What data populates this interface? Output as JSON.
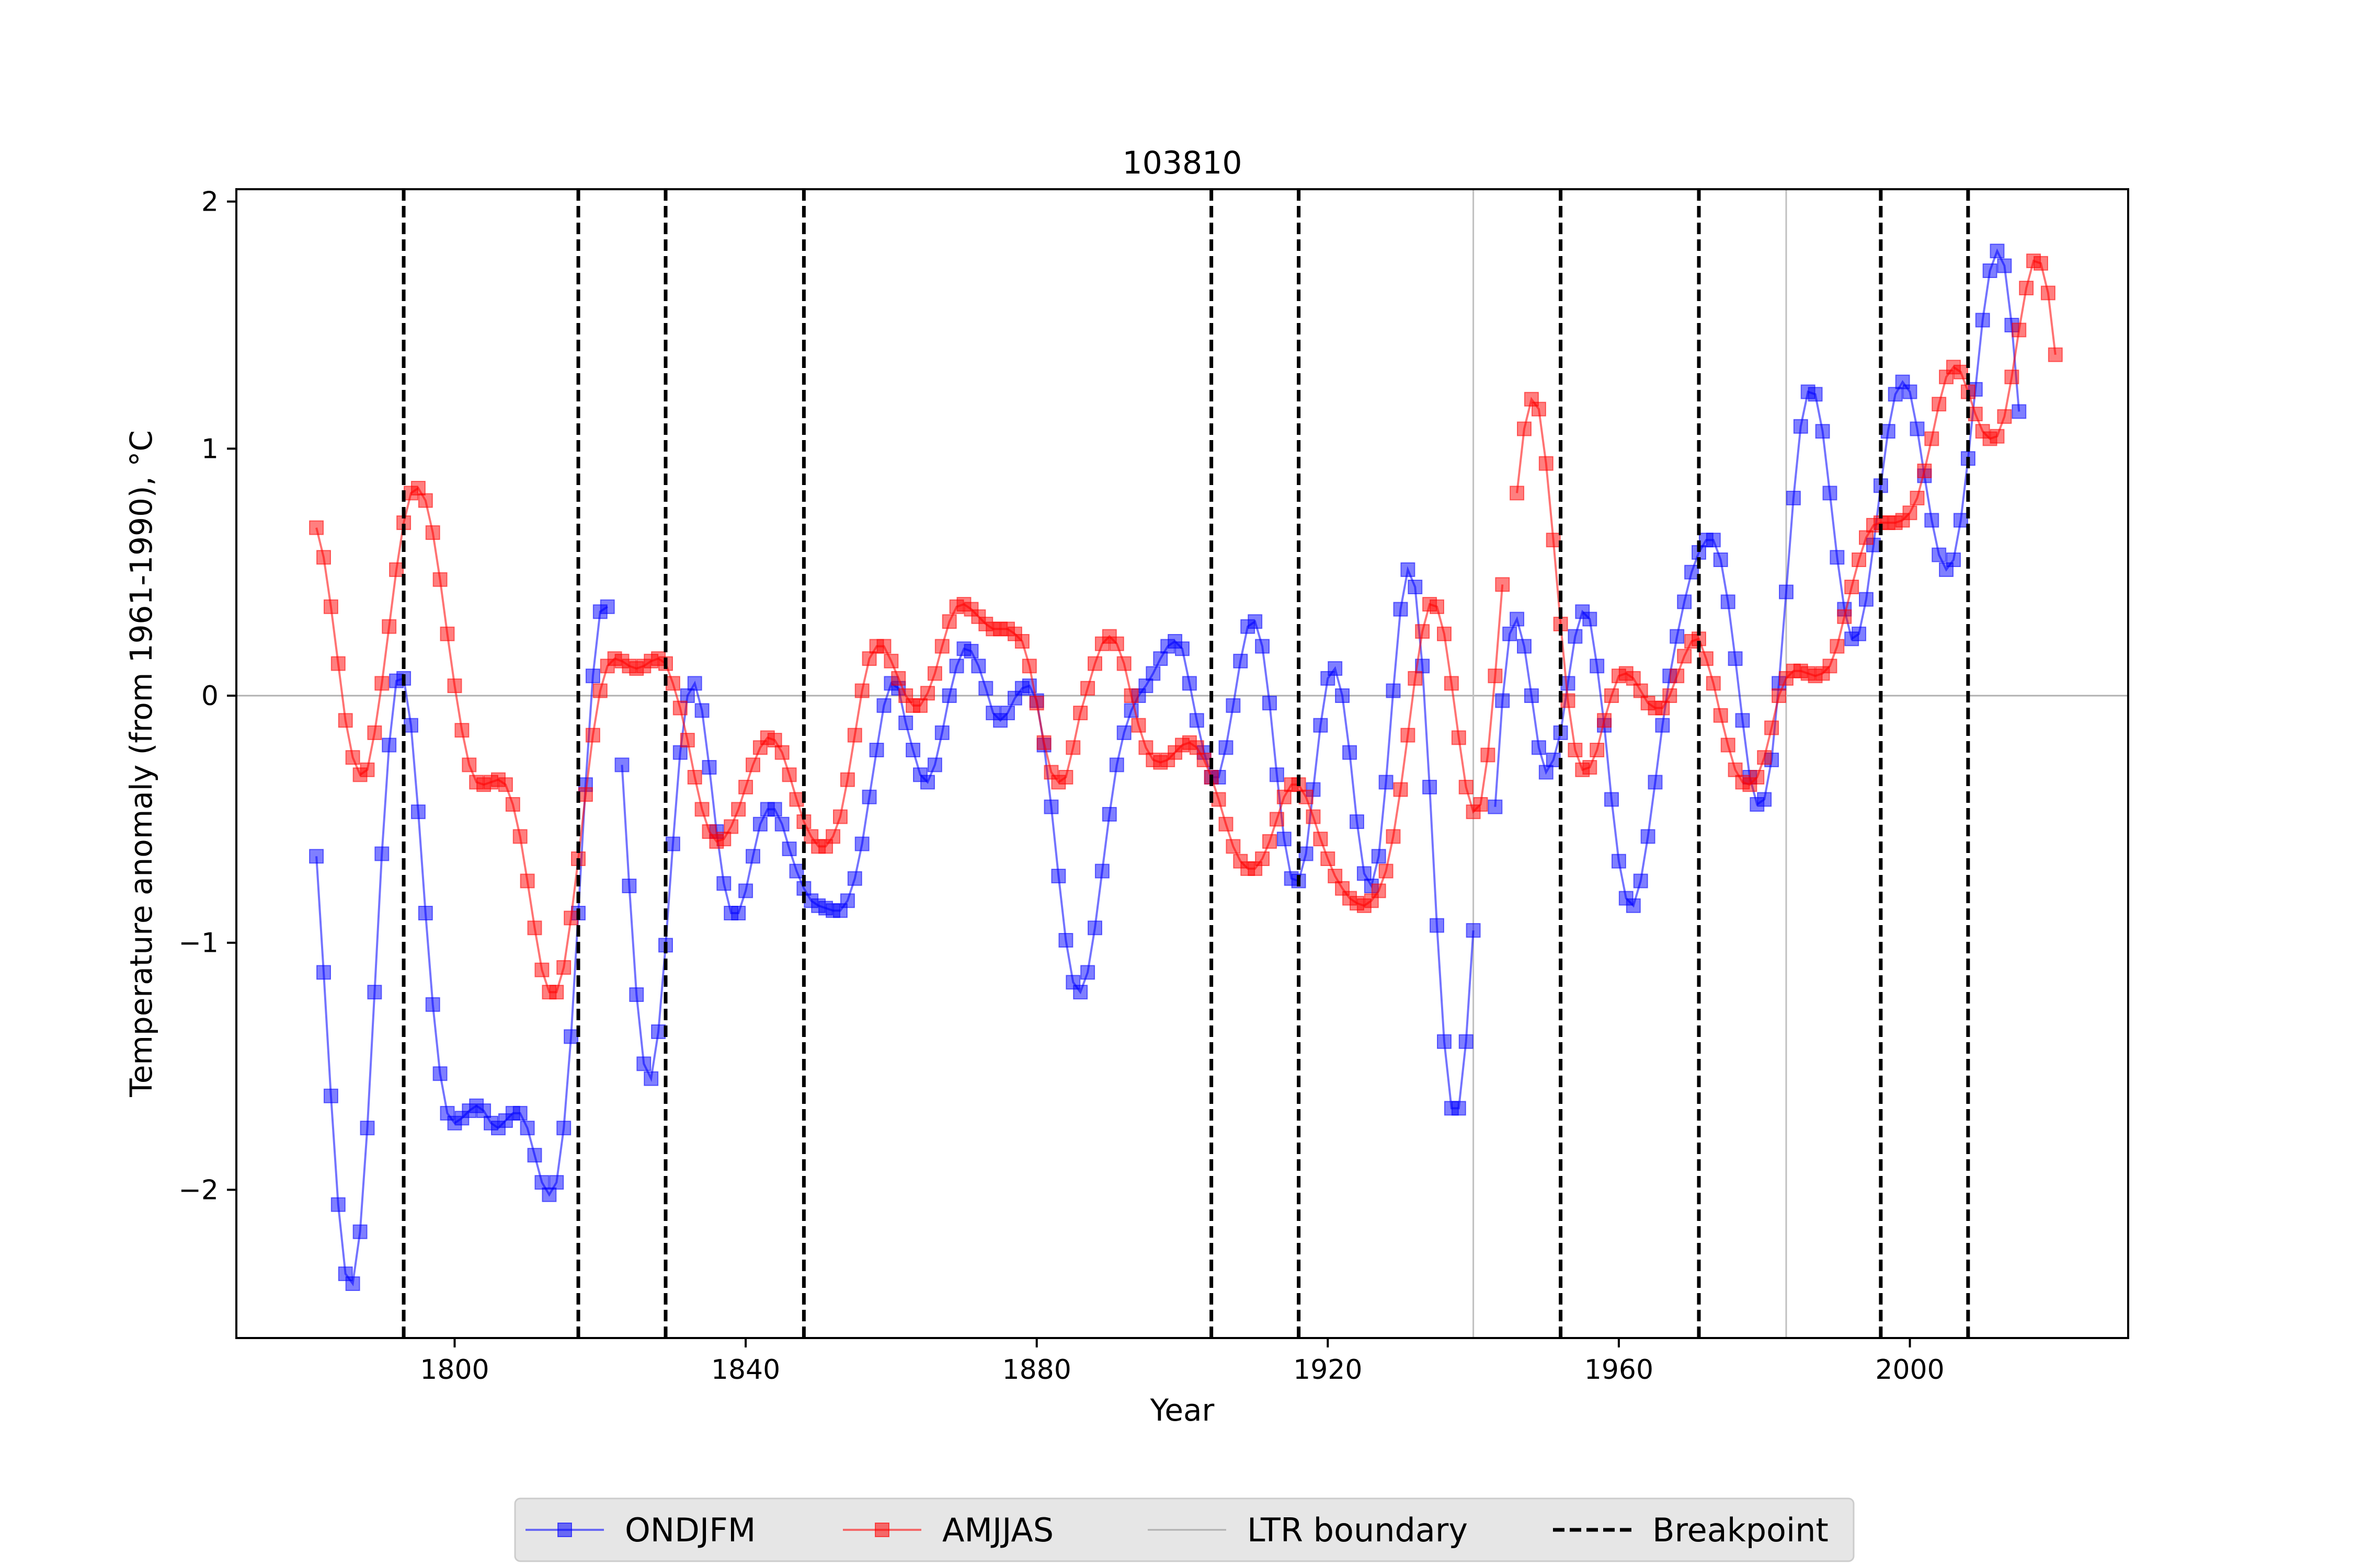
{
  "chart_data": {
    "type": "line",
    "title": "103810",
    "xlabel": "Year",
    "ylabel": "Temperature anomaly (from 1961-1990), °C",
    "xlim": [
      1770,
      2030
    ],
    "ylim": [
      -2.6,
      2.05
    ],
    "xticks": [
      1800,
      1840,
      1880,
      1920,
      1960,
      2000
    ],
    "yticks": [
      -2,
      -1,
      0,
      1,
      2
    ],
    "ytick_labels": [
      "−2",
      "−1",
      "0",
      "1",
      "2"
    ],
    "zero_line": true,
    "legend_position": "bottom-center",
    "ltr_boundaries": [
      1940,
      1983
    ],
    "breakpoints": [
      1793,
      1817,
      1829,
      1848,
      1904,
      1916,
      1952,
      1971,
      1996,
      2008
    ],
    "series": [
      {
        "name": "ONDJFM",
        "color": "#0000ff",
        "x_start": 1781,
        "values": [
          -0.65,
          -1.12,
          -1.62,
          -2.06,
          -2.34,
          -2.38,
          -2.17,
          -1.75,
          -1.2,
          -0.64,
          -0.2,
          0.06,
          0.07,
          -0.12,
          -0.47,
          -0.88,
          -1.25,
          -1.53,
          -1.69,
          -1.73,
          -1.71,
          -1.68,
          -1.66,
          -1.68,
          -1.73,
          -1.75,
          -1.72,
          -1.69,
          -1.69,
          -1.75,
          -1.86,
          -1.97,
          -2.02,
          -1.97,
          -1.75,
          -1.38,
          -0.88,
          -0.36,
          0.08,
          0.34,
          0.36,
          null,
          -0.28,
          -0.77,
          -1.21,
          -1.49,
          -1.55,
          -1.36,
          -1.01,
          -0.6,
          -0.23,
          0.0,
          0.05,
          -0.06,
          -0.29,
          -0.55,
          -0.76,
          -0.88,
          -0.88,
          -0.79,
          -0.65,
          -0.52,
          -0.46,
          -0.46,
          -0.52,
          -0.62,
          -0.71,
          -0.78,
          -0.83,
          -0.85,
          -0.86,
          -0.87,
          -0.87,
          -0.83,
          -0.74,
          -0.6,
          -0.41,
          -0.22,
          -0.04,
          0.05,
          0.03,
          -0.11,
          -0.22,
          -0.32,
          -0.35,
          -0.28,
          -0.15,
          0.0,
          0.12,
          0.19,
          0.18,
          0.12,
          0.03,
          -0.07,
          -0.1,
          -0.07,
          -0.01,
          0.03,
          0.04,
          -0.02,
          -0.2,
          -0.45,
          -0.73,
          -0.99,
          -1.16,
          -1.2,
          -1.12,
          -0.94,
          -0.71,
          -0.48,
          -0.28,
          -0.15,
          -0.06,
          0.0,
          0.04,
          0.09,
          0.15,
          0.2,
          0.22,
          0.19,
          0.05,
          -0.1,
          -0.23,
          -0.33,
          -0.33,
          -0.21,
          -0.04,
          0.14,
          0.28,
          0.3,
          0.2,
          -0.03,
          -0.32,
          -0.58,
          -0.74,
          -0.75,
          -0.64,
          -0.38,
          -0.12,
          0.07,
          0.11,
          0.0,
          -0.23,
          -0.51,
          -0.72,
          -0.77,
          -0.65,
          -0.35,
          0.02,
          0.35,
          0.51,
          0.44,
          0.12,
          -0.37,
          -0.93,
          -1.4,
          -1.67,
          -1.67,
          -1.4,
          -0.95,
          null,
          null,
          -0.45,
          -0.02,
          0.25,
          0.31,
          0.2,
          0.0,
          -0.21,
          -0.31,
          -0.26,
          -0.15,
          0.05,
          0.24,
          0.34,
          0.31,
          0.12,
          -0.12,
          -0.42,
          -0.67,
          -0.82,
          -0.85,
          -0.75,
          -0.57,
          -0.35,
          -0.12,
          0.08,
          0.24,
          0.38,
          0.5,
          0.58,
          0.63,
          0.63,
          0.55,
          0.38,
          0.15,
          -0.1,
          -0.33,
          -0.44,
          -0.42,
          -0.26,
          0.05,
          0.42,
          0.8,
          1.09,
          1.23,
          1.22,
          1.07,
          0.82,
          0.56,
          0.35,
          0.23,
          0.25,
          0.39,
          0.61,
          0.85,
          1.07,
          1.22,
          1.27,
          1.23,
          1.08,
          0.89,
          0.71,
          0.57,
          0.51,
          0.55,
          0.71,
          0.96,
          1.24,
          1.52,
          1.72,
          1.8,
          1.74,
          1.5,
          1.15
        ]
      },
      {
        "name": "AMJJAS",
        "color": "#ff0000",
        "x_start": 1781,
        "values": [
          0.68,
          0.56,
          0.36,
          0.13,
          -0.1,
          -0.25,
          -0.32,
          -0.3,
          -0.15,
          0.05,
          0.28,
          0.51,
          0.7,
          0.82,
          0.84,
          0.79,
          0.66,
          0.47,
          0.25,
          0.04,
          -0.14,
          -0.28,
          -0.35,
          -0.36,
          -0.35,
          -0.34,
          -0.36,
          -0.44,
          -0.57,
          -0.75,
          -0.94,
          -1.11,
          -1.2,
          -1.2,
          -1.1,
          -0.9,
          -0.66,
          -0.4,
          -0.16,
          0.02,
          0.12,
          0.15,
          0.14,
          0.12,
          0.11,
          0.12,
          0.14,
          0.15,
          0.13,
          0.05,
          -0.05,
          -0.18,
          -0.33,
          -0.46,
          -0.55,
          -0.59,
          -0.58,
          -0.53,
          -0.46,
          -0.37,
          -0.28,
          -0.21,
          -0.17,
          -0.18,
          -0.23,
          -0.32,
          -0.42,
          -0.51,
          -0.57,
          -0.61,
          -0.61,
          -0.57,
          -0.49,
          -0.34,
          -0.16,
          0.02,
          0.15,
          0.2,
          0.2,
          0.14,
          0.07,
          0.0,
          -0.04,
          -0.04,
          0.01,
          0.09,
          0.2,
          0.3,
          0.36,
          0.37,
          0.35,
          0.32,
          0.29,
          0.27,
          0.27,
          0.27,
          0.25,
          0.22,
          0.12,
          -0.03,
          -0.19,
          -0.31,
          -0.35,
          -0.33,
          -0.21,
          -0.07,
          0.03,
          0.13,
          0.21,
          0.24,
          0.21,
          0.13,
          0.0,
          -0.12,
          -0.21,
          -0.26,
          -0.27,
          -0.26,
          -0.23,
          -0.2,
          -0.19,
          -0.21,
          -0.26,
          -0.33,
          -0.42,
          -0.52,
          -0.61,
          -0.67,
          -0.7,
          -0.7,
          -0.66,
          -0.59,
          -0.5,
          -0.41,
          -0.36,
          -0.36,
          -0.41,
          -0.49,
          -0.58,
          -0.66,
          -0.73,
          -0.78,
          -0.82,
          -0.84,
          -0.85,
          -0.83,
          -0.79,
          -0.71,
          -0.57,
          -0.38,
          -0.16,
          0.07,
          0.26,
          0.37,
          0.36,
          0.25,
          0.05,
          -0.17,
          -0.37,
          -0.47,
          -0.44,
          -0.24,
          0.08,
          0.45,
          null,
          0.82,
          1.08,
          1.2,
          1.16,
          0.94,
          0.63,
          0.29,
          -0.02,
          -0.22,
          -0.3,
          -0.29,
          -0.22,
          -0.1,
          0.0,
          0.08,
          0.09,
          0.07,
          0.02,
          -0.03,
          -0.05,
          -0.05,
          0.0,
          0.08,
          0.16,
          0.22,
          0.23,
          0.15,
          0.05,
          -0.08,
          -0.2,
          -0.3,
          -0.35,
          -0.36,
          -0.33,
          -0.25,
          -0.13,
          0.0,
          0.07,
          0.1,
          0.1,
          0.09,
          0.08,
          0.09,
          0.12,
          0.2,
          0.32,
          0.44,
          0.55,
          0.64,
          0.69,
          0.7,
          0.7,
          0.7,
          0.71,
          0.74,
          0.8,
          0.91,
          1.04,
          1.18,
          1.29,
          1.33,
          1.31,
          1.23,
          1.14,
          1.07,
          1.04,
          1.05,
          1.13,
          1.29,
          1.48,
          1.65,
          1.76,
          1.75,
          1.63,
          1.38
        ]
      }
    ],
    "legend": {
      "entries": [
        {
          "label": "ONDJFM",
          "style": "blue-line-square-marker"
        },
        {
          "label": "AMJJAS",
          "style": "red-line-square-marker"
        },
        {
          "label": "LTR boundary",
          "style": "gray-thin-line"
        },
        {
          "label": "Breakpoint",
          "style": "black-dashed-line"
        }
      ]
    }
  }
}
